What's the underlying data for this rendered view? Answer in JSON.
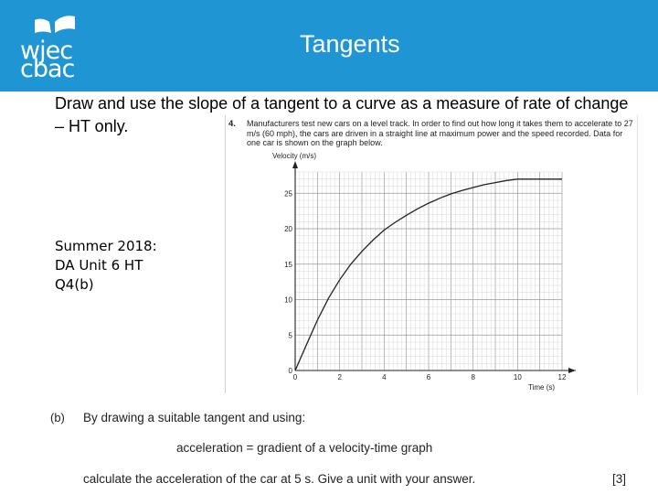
{
  "header": {
    "brand_line1": "wjec",
    "brand_line2": "cbac",
    "title": "Tangents",
    "accent_color": "#1f96d3"
  },
  "intro": "Draw and use the slope of a tangent to a curve as a measure of rate of change – HT only.",
  "source": "Summer 2018:\nDA Unit 6 HT\nQ4(b)",
  "question": {
    "number": "4.",
    "text": "Manufacturers test new cars on a level track. In order to find out how long it takes them to accelerate to 27 m/s (60 mph), the cars are driven in a straight line at maximum power and the speed recorded. Data for one car is shown on the graph below.",
    "part_label": "(b)",
    "part_text": "By drawing a suitable tangent and using:",
    "formula": "acceleration = gradient of a velocity-time graph",
    "instruction": "calculate the acceleration of the car at 5 s. Give a unit with your answer.",
    "marks": "[3]"
  },
  "chart_data": {
    "type": "line",
    "ylabel": "Velocity (m/s)",
    "xlabel": "Time (s)",
    "xlim": [
      0,
      12
    ],
    "ylim": [
      0,
      28
    ],
    "x_ticks": [
      "0",
      "2",
      "4",
      "6",
      "8",
      "10",
      "12"
    ],
    "y_ticks": [
      "0",
      "5",
      "10",
      "15",
      "20",
      "25"
    ],
    "grid": true,
    "series": [
      {
        "x": [
          0,
          0.5,
          1,
          1.5,
          2,
          2.5,
          3,
          3.5,
          4,
          4.5,
          5,
          5.5,
          6,
          6.5,
          7,
          7.5,
          8,
          8.5,
          9,
          9.5,
          10,
          10.5,
          11,
          11.5,
          12
        ],
        "values": [
          0,
          3.6,
          7.1,
          10.2,
          12.8,
          15.0,
          16.8,
          18.4,
          19.8,
          20.9,
          21.9,
          22.8,
          23.6,
          24.3,
          24.9,
          25.4,
          25.8,
          26.2,
          26.5,
          26.8,
          27.0,
          27.0,
          27.0,
          27.0,
          27.0
        ]
      }
    ]
  }
}
